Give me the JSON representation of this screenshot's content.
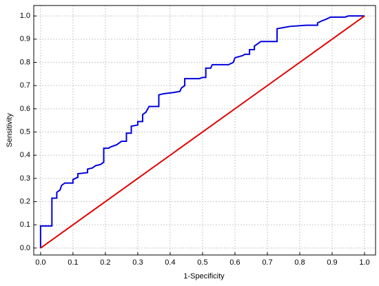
{
  "chart_data": {
    "type": "line",
    "x_label": "1-Specificity",
    "y_label": "Sensitivity",
    "xlim": [
      -0.021,
      1.034
    ],
    "ylim": [
      -0.03,
      1.045
    ],
    "xticks": [
      {
        "value": 0,
        "label": "0.0"
      },
      0.1,
      0.2,
      0.3,
      0.4,
      0.5,
      0.6,
      0.7,
      0.8,
      0.9,
      {
        "value": 1,
        "label": "1.0"
      }
    ],
    "yticks": [
      {
        "value": 0,
        "label": "0.0"
      },
      0.1,
      0.2,
      0.3,
      0.4,
      0.5,
      0.6,
      0.7,
      0.8,
      0.9,
      {
        "value": 1,
        "label": "1.0"
      }
    ],
    "grid": true,
    "series": [
      {
        "color": "#0000dd",
        "x": [
          0,
          0,
          0.035,
          0.035,
          0.05,
          0.05,
          0.06,
          0.065,
          0.075,
          0.1,
          0.1,
          0.115,
          0.115,
          0.145,
          0.145,
          0.16,
          0.17,
          0.185,
          0.195,
          0.195,
          0.21,
          0.215,
          0.235,
          0.25,
          0.265,
          0.265,
          0.28,
          0.28,
          0.3,
          0.3,
          0.315,
          0.315,
          0.325,
          0.335,
          0.365,
          0.365,
          0.38,
          0.41,
          0.43,
          0.435,
          0.445,
          0.445,
          0.49,
          0.5,
          0.51,
          0.51,
          0.525,
          0.53,
          0.58,
          0.595,
          0.6,
          0.625,
          0.63,
          0.645,
          0.645,
          0.66,
          0.66,
          0.67,
          0.68,
          0.73,
          0.73,
          0.75,
          0.77,
          0.82,
          0.855,
          0.855,
          0.87,
          0.88,
          0.895,
          0.94,
          0.95,
          1.0
        ],
        "values": [
          0,
          0.095,
          0.095,
          0.215,
          0.215,
          0.24,
          0.25,
          0.27,
          0.28,
          0.28,
          0.295,
          0.305,
          0.32,
          0.325,
          0.34,
          0.345,
          0.355,
          0.36,
          0.37,
          0.43,
          0.43,
          0.435,
          0.445,
          0.46,
          0.46,
          0.495,
          0.495,
          0.525,
          0.53,
          0.545,
          0.545,
          0.575,
          0.585,
          0.61,
          0.61,
          0.66,
          0.665,
          0.67,
          0.675,
          0.69,
          0.7,
          0.73,
          0.73,
          0.735,
          0.735,
          0.775,
          0.775,
          0.79,
          0.79,
          0.8,
          0.82,
          0.83,
          0.835,
          0.835,
          0.855,
          0.855,
          0.87,
          0.88,
          0.89,
          0.89,
          0.945,
          0.95,
          0.955,
          0.96,
          0.96,
          0.97,
          0.98,
          0.985,
          0.995,
          0.995,
          1.0,
          1.0
        ]
      },
      {
        "color": "#e00000",
        "x": [
          0,
          1
        ],
        "values": [
          0,
          1
        ]
      }
    ]
  }
}
